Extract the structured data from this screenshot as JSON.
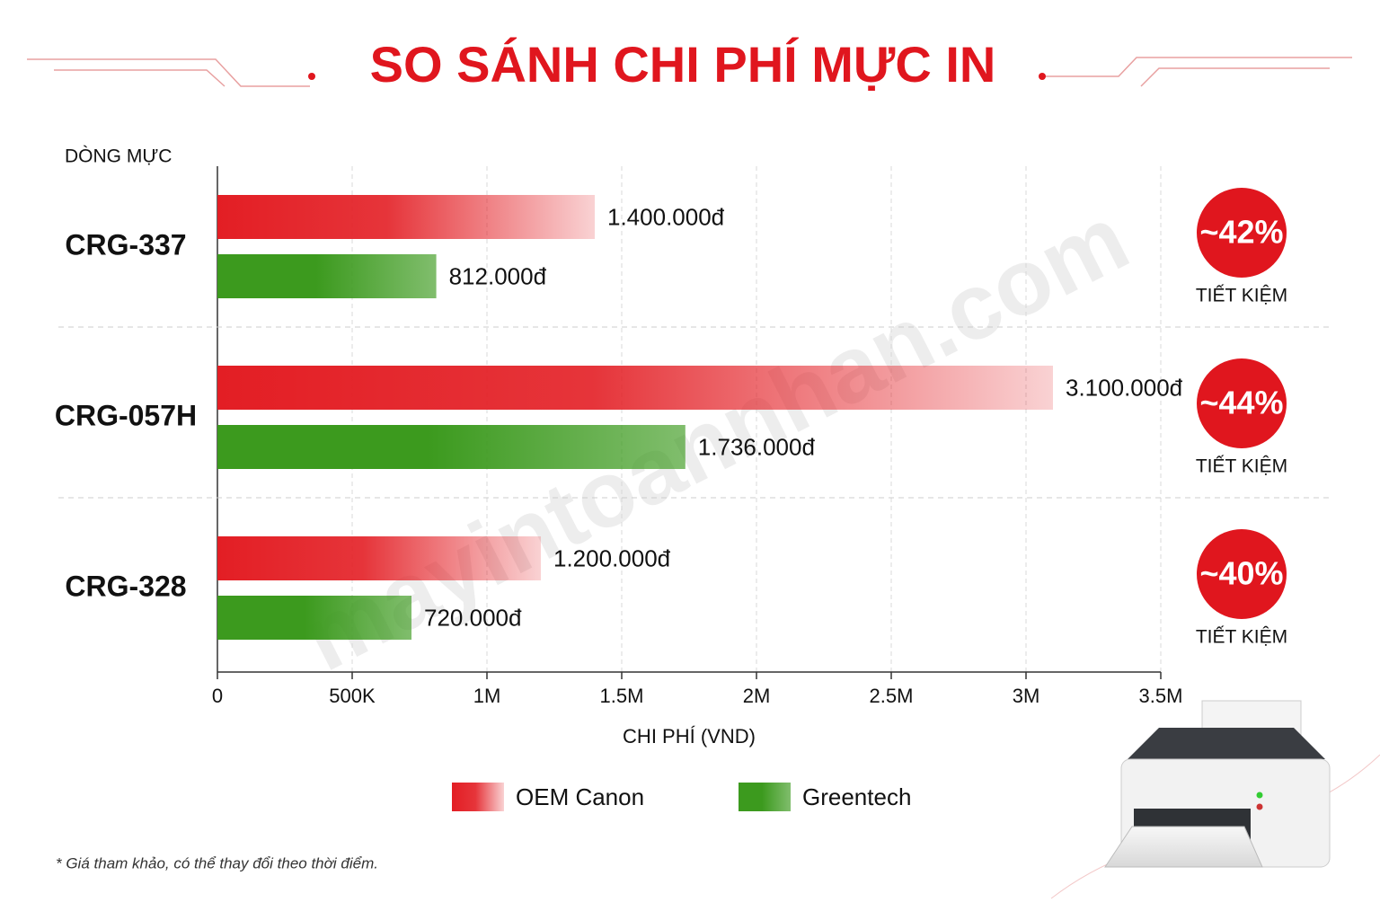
{
  "chart_data": {
    "type": "hbar",
    "title": "SO SÁNH CHI PHÍ MỰC IN",
    "y_label": "DÒNG MỰC",
    "x_label": "CHI PHÍ (VND)",
    "categories": [
      "CRG-337",
      "CRG-057H",
      "CRG-328"
    ],
    "series": [
      {
        "name": "OEM Canon",
        "color": "#e31e24",
        "values": [
          1400000,
          3100000,
          1200000
        ],
        "value_labels": [
          "1.400.000đ",
          "3.100.000đ",
          "1.200.000đ"
        ]
      },
      {
        "name": "Greentech",
        "color": "#3c9a1e",
        "values": [
          812000,
          1736000,
          720000
        ],
        "value_labels": [
          "812.000đ",
          "1.736.000đ",
          "720.000đ"
        ]
      }
    ],
    "xlim": [
      0,
      3500000
    ],
    "xticks": [
      0,
      {
        "value": 500000,
        "label": "500K"
      },
      {
        "value": 1000000,
        "label": "1M"
      },
      {
        "value": 1500000,
        "label": "1.5M"
      },
      {
        "value": 2000000,
        "label": "2M"
      },
      {
        "value": 2500000,
        "label": "2.5M"
      },
      {
        "value": 3000000,
        "label": "3M"
      },
      {
        "value": 3500000,
        "label": "3.5M"
      }
    ],
    "grid": true,
    "savings_labels": [
      "~42%",
      "~44%",
      "~40%"
    ],
    "savings_caption": "TIẾT KIỆM",
    "footnote": "* Giá tham khảo, có thể thay đổi theo thời điểm.",
    "watermark": "mayintoannhan.com"
  }
}
